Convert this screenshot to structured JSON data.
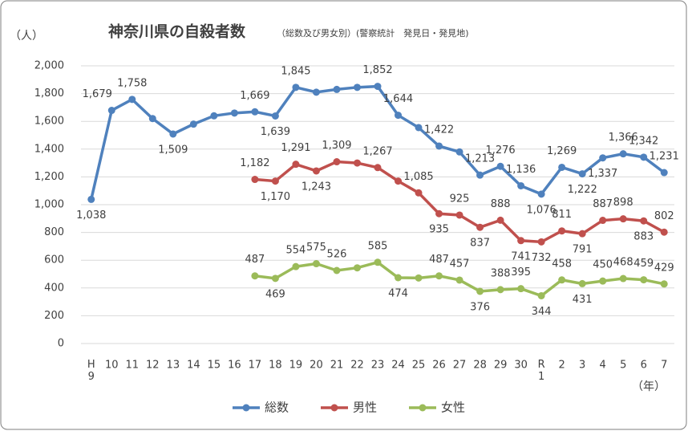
{
  "chart_data": {
    "type": "line",
    "title": "神奈川県の自殺者数",
    "subtitle": "（総数及び男女別）(警察統計　発見日・発見地)",
    "y_axis_label": "（人）",
    "x_axis_label": "（年）",
    "categories": [
      "H9",
      "10",
      "11",
      "12",
      "13",
      "14",
      "15",
      "16",
      "17",
      "18",
      "19",
      "20",
      "21",
      "22",
      "23",
      "24",
      "25",
      "26",
      "27",
      "28",
      "29",
      "30",
      "R1",
      "2",
      "3",
      "4",
      "5",
      "6",
      "7"
    ],
    "ylim": [
      0,
      2000
    ],
    "yticks": [
      0,
      200,
      400,
      600,
      800,
      {
        "value": 1000,
        "label": "1,000"
      },
      {
        "value": 1200,
        "label": "1,200"
      },
      {
        "value": 1400,
        "label": "1,400"
      },
      {
        "value": 1600,
        "label": "1,600"
      },
      {
        "value": 1800,
        "label": "1,800"
      },
      {
        "value": 2000,
        "label": "2,000"
      }
    ],
    "grid": true,
    "legend": "bottom",
    "series": [
      {
        "name": "総数",
        "color": "#4f81bd",
        "values": [
          1038,
          1679,
          1758,
          1620,
          1509,
          1580,
          1640,
          1660,
          1669,
          1639,
          1845,
          1810,
          1830,
          1845,
          1852,
          1644,
          1555,
          1422,
          1380,
          1213,
          1276,
          1136,
          1076,
          1269,
          1222,
          1337,
          1366,
          1342,
          1231
        ],
        "value_labels": [
          "1,038",
          "1,679",
          "1,758",
          null,
          "1,509",
          null,
          null,
          null,
          "1,669",
          "1,639",
          "1,845",
          null,
          null,
          null,
          "1,852",
          "1,644",
          null,
          "1,422",
          null,
          "1,213",
          "1,276",
          "1,136",
          "1,076",
          "1,269",
          "1,222",
          "1,337",
          "1,366",
          "1,342",
          "1,231"
        ]
      },
      {
        "name": "男性",
        "color": "#c0504d",
        "values": [
          null,
          null,
          null,
          null,
          null,
          null,
          null,
          null,
          1182,
          1170,
          1291,
          1243,
          1309,
          1300,
          1267,
          1170,
          1085,
          935,
          925,
          837,
          888,
          741,
          732,
          811,
          791,
          887,
          898,
          883,
          802
        ],
        "value_labels": [
          null,
          null,
          null,
          null,
          null,
          null,
          null,
          null,
          "1,182",
          "1,170",
          "1,291",
          "1,243",
          "1,309",
          null,
          "1,267",
          null,
          "1,085",
          "935",
          "925",
          "837",
          "888",
          "741",
          "732",
          "811",
          "791",
          "887",
          "898",
          "883",
          "802"
        ]
      },
      {
        "name": "女性",
        "color": "#9bbb59",
        "values": [
          null,
          null,
          null,
          null,
          null,
          null,
          null,
          null,
          487,
          469,
          554,
          575,
          526,
          545,
          585,
          474,
          472,
          487,
          457,
          376,
          388,
          395,
          344,
          458,
          431,
          450,
          468,
          459,
          429
        ],
        "value_labels": [
          null,
          null,
          null,
          null,
          null,
          null,
          null,
          null,
          "487",
          "469",
          "554",
          "575",
          "526",
          null,
          "585",
          "474",
          null,
          "487",
          "457",
          "376",
          "388",
          "395",
          "344",
          "458",
          "431",
          "450",
          "468",
          "459",
          "429"
        ]
      }
    ]
  }
}
